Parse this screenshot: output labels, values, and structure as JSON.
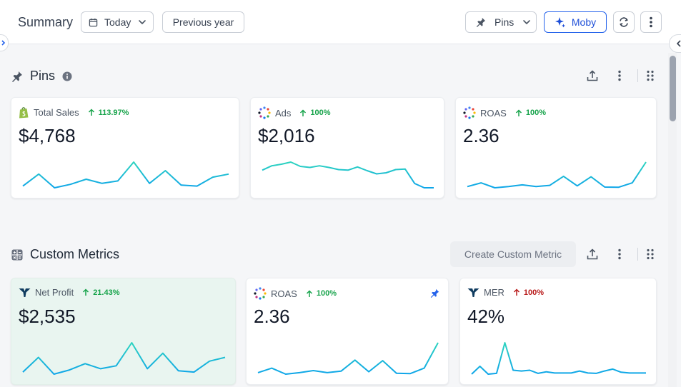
{
  "header": {
    "title": "Summary",
    "date_label": "Today",
    "compare_label": "Previous year",
    "pins_label": "Pins",
    "moby_label": "Moby"
  },
  "colors": {
    "accent": "#2563eb",
    "spark_teal": "#2dd4bf",
    "spark_blue": "#0ea5e9",
    "up": "#16a34a",
    "down": "#b91c1c"
  },
  "sections": {
    "pins_title": "Pins",
    "custom_title": "Custom Metrics",
    "create_label": "Create Custom Metric"
  },
  "pins": [
    {
      "icon": "shopify-icon",
      "name": "Total Sales",
      "delta": "113.97%",
      "direction": "up",
      "value": "$4,768",
      "series": [
        3,
        6.5,
        2.5,
        3.5,
        5,
        3.8,
        4.5,
        10,
        3.8,
        7.5,
        3.3,
        3,
        5.6,
        6.5
      ]
    },
    {
      "icon": "ads-icon",
      "name": "Ads",
      "delta": "100%",
      "direction": "up",
      "value": "$2,016",
      "series": [
        8.5,
        9.3,
        9.6,
        10,
        9.2,
        9,
        9.3,
        9,
        8.6,
        8.5,
        9.1,
        8.4,
        7.8,
        8,
        8.6,
        8.7,
        6,
        5.2,
        5.2
      ]
    },
    {
      "icon": "ads-icon",
      "name": "ROAS",
      "delta": "100%",
      "direction": "up",
      "value": "2.36",
      "series": [
        2,
        3.5,
        1.5,
        2,
        2.7,
        2,
        2.5,
        6.2,
        2.3,
        6,
        1.8,
        1.7,
        3.5,
        12
      ]
    }
  ],
  "custom": [
    {
      "icon": "triple-whale-icon",
      "name": "Net Profit",
      "delta": "21.43%",
      "direction": "up",
      "value": "$2,535",
      "pinned": false,
      "series": [
        3,
        6.5,
        2.5,
        3.5,
        5,
        3.8,
        4.5,
        10,
        3.8,
        7.5,
        3.3,
        3,
        5.6,
        6.5
      ]
    },
    {
      "icon": "ads-icon",
      "name": "ROAS",
      "delta": "100%",
      "direction": "up",
      "value": "2.36",
      "pinned": true,
      "series": [
        2,
        3.5,
        1.5,
        2,
        2.7,
        2,
        2.5,
        6.2,
        2.3,
        6,
        1.8,
        1.7,
        3.5,
        12
      ]
    },
    {
      "icon": "triple-whale-icon",
      "name": "MER",
      "delta": "100%",
      "direction": "down",
      "value": "42%",
      "pinned": false,
      "series": [
        2,
        4,
        2,
        2.2,
        10,
        3,
        2.8,
        3,
        2.2,
        2.6,
        2.3,
        2.3,
        2.3,
        2.8,
        2.3,
        2.2,
        2.8,
        3.3,
        2.5,
        2.3,
        2.3,
        2.3
      ]
    }
  ]
}
